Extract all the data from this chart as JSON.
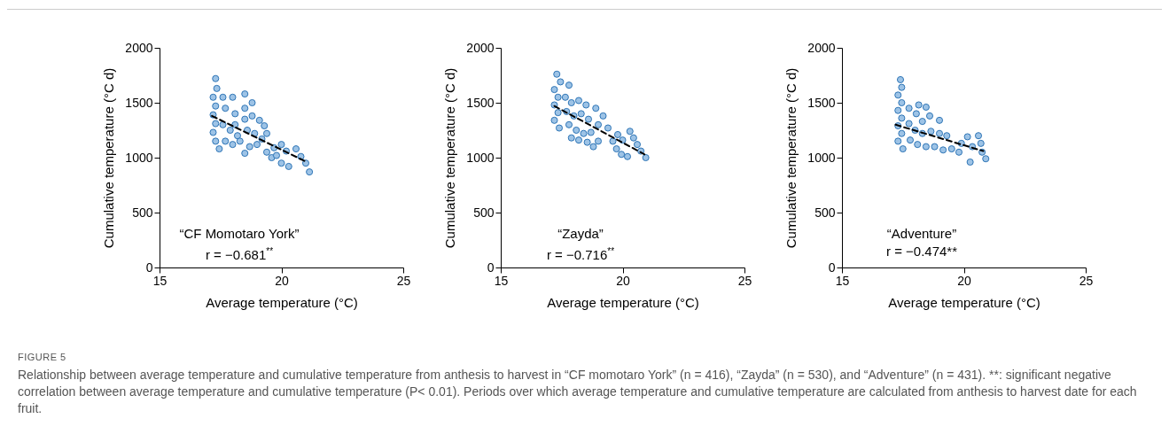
{
  "chart_data": [
    {
      "type": "scatter",
      "xlabel": "Average temperature (°C)",
      "ylabel": "Cumulative temperature (°C d)",
      "xlim": [
        15,
        25
      ],
      "xticks": [
        15,
        20,
        25
      ],
      "ylim": [
        0,
        2000
      ],
      "yticks": [
        0,
        500,
        1000,
        1500,
        2000
      ],
      "grid": false,
      "marker": "circle",
      "annotations": [
        "“CF Momotaro York”",
        "r = −0.681$^{**}$",
        "FIGURE 5",
        "Relationship between average temperature and cumulative temperature from anthesis to harvest in “CF momotaro York” (n = 416), “Zayda” (n = 530), and “Adventure” (n = 431). **: significant negative correlation between average temperature and cumulative temperature (P< 0.01). Periods over which average temperature and cumulative temperature are calculated from anthesis to harvest date for each fruit."
      ],
      "series": [
        {
          "type": "scatter",
          "color": "#9dc3e6",
          "x": [
            17.3,
            17.35,
            17.2,
            17.3,
            17.2,
            17.3,
            17.2,
            17.3,
            17.45,
            17.6,
            18.0,
            18.5,
            18.8,
            17.7,
            18.1,
            18.5,
            18.8,
            19.1,
            19.3,
            17.6,
            17.9,
            18.2,
            18.6,
            18.9,
            19.2,
            17.7,
            18.0,
            18.3,
            18.7,
            19.0,
            19.4,
            18.5,
            19.4,
            19.6,
            19.8,
            20.0,
            20.2,
            20.0,
            20.3,
            20.6,
            20.8,
            21.0,
            21.15,
            19.7,
            18.1,
            18.5
          ],
          "values": [
            1720,
            1630,
            1550,
            1470,
            1390,
            1310,
            1230,
            1150,
            1080,
            1550,
            1550,
            1580,
            1500,
            1450,
            1400,
            1350,
            1380,
            1340,
            1290,
            1300,
            1250,
            1200,
            1250,
            1220,
            1170,
            1150,
            1120,
            1150,
            1100,
            1120,
            1220,
            1040,
            1050,
            1000,
            1020,
            1120,
            1060,
            950,
            920,
            1080,
            1010,
            950,
            870,
            1090,
            1300,
            1450
          ]
        },
        {
          "type": "line",
          "color": "#000000",
          "line_style": "dashed",
          "marker": "none",
          "x": [
            17.15,
            20.95
          ],
          "values": [
            1380,
            970
          ]
        }
      ]
    },
    {
      "type": "scatter",
      "xlabel": "Average temperature (°C)",
      "ylabel": "Cumulative temperature (°C d)",
      "xlim": [
        15,
        25
      ],
      "xticks": [
        15,
        20,
        25
      ],
      "ylim": [
        0,
        2000
      ],
      "yticks": [
        0,
        500,
        1000,
        1500,
        2000
      ],
      "grid": false,
      "marker": "circle",
      "annotations": [
        "“Zayda”",
        "r = −0.716$^{**}$"
      ],
      "series": [
        {
          "type": "scatter",
          "color": "#9dc3e6",
          "x": [
            17.3,
            17.45,
            17.2,
            17.35,
            17.2,
            17.35,
            17.2,
            17.4,
            17.8,
            17.65,
            17.9,
            18.2,
            18.5,
            18.9,
            19.2,
            17.7,
            18.0,
            18.3,
            18.6,
            19.0,
            19.4,
            17.8,
            18.1,
            18.4,
            18.7,
            17.9,
            18.2,
            18.55,
            18.8,
            19.0,
            19.6,
            19.8,
            19.75,
            19.95,
            20.0,
            20.2,
            20.3,
            20.45,
            20.6,
            20.75,
            20.95
          ],
          "values": [
            1760,
            1690,
            1620,
            1550,
            1480,
            1410,
            1340,
            1270,
            1660,
            1550,
            1500,
            1520,
            1480,
            1450,
            1380,
            1420,
            1380,
            1400,
            1350,
            1300,
            1270,
            1300,
            1250,
            1220,
            1230,
            1180,
            1160,
            1140,
            1100,
            1150,
            1150,
            1210,
            1080,
            1030,
            1160,
            1010,
            1240,
            1180,
            1120,
            1060,
            1000
          ]
        },
        {
          "type": "line",
          "color": "#000000",
          "line_style": "dashed",
          "marker": "none",
          "x": [
            17.2,
            20.9
          ],
          "values": [
            1470,
            1030
          ]
        }
      ]
    },
    {
      "type": "scatter",
      "xlabel": "Average temperature (°C)",
      "ylabel": "Cumulative temperature (°C d)",
      "xlim": [
        15,
        25
      ],
      "xticks": [
        15,
        20,
        25
      ],
      "ylim": [
        0,
        2000
      ],
      "yticks": [
        0,
        500,
        1000,
        1500,
        2000
      ],
      "grid": false,
      "marker": "circle",
      "annotations": [
        "“Adventure”",
        "r = −0.474**"
      ],
      "series": [
        {
          "type": "scatter",
          "color": "#9dc3e6",
          "x": [
            17.4,
            17.45,
            17.3,
            17.45,
            17.3,
            17.45,
            17.3,
            17.45,
            17.3,
            17.5,
            17.75,
            18.05,
            18.15,
            18.45,
            18.6,
            18.3,
            19.0,
            17.75,
            18.0,
            18.3,
            18.65,
            19.0,
            19.3,
            17.8,
            18.1,
            18.45,
            18.8,
            19.15,
            19.5,
            19.8,
            19.9,
            20.15,
            20.35,
            20.26,
            20.6,
            20.7,
            20.75,
            20.9
          ],
          "values": [
            1710,
            1640,
            1570,
            1500,
            1430,
            1360,
            1290,
            1220,
            1150,
            1080,
            1450,
            1400,
            1480,
            1460,
            1380,
            1330,
            1340,
            1310,
            1250,
            1220,
            1240,
            1220,
            1200,
            1160,
            1120,
            1100,
            1100,
            1070,
            1080,
            1050,
            1130,
            1190,
            1100,
            960,
            1200,
            1130,
            1050,
            990
          ]
        },
        {
          "type": "line",
          "color": "#000000",
          "line_style": "dashed",
          "marker": "none",
          "x": [
            17.2,
            20.8
          ],
          "values": [
            1300,
            1060
          ]
        }
      ]
    }
  ]
}
